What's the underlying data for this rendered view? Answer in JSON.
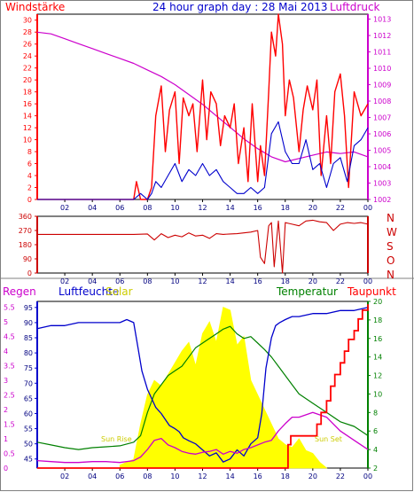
{
  "title": "24 hour graph day : 28 Mai 2013",
  "colors": {
    "wind": "#ff0000",
    "windBlue": "#0000cc",
    "pressure": "#cc00cc",
    "direction": "#cc0000",
    "humidity": "#0000cc",
    "solar": "#ffff00",
    "temperature": "#008000",
    "dewpoint": "#ff0000",
    "rain": "#cc00cc",
    "axisDark": "#000080",
    "frame": "#808080"
  },
  "chart_data": [
    {
      "type": "line",
      "id": "wind",
      "label_left": "Windstärke",
      "label_right": "Luftdruck",
      "x_ticks": [
        "02",
        "04",
        "06",
        "08",
        "10",
        "12",
        "14",
        "16",
        "18",
        "20",
        "22",
        "00"
      ],
      "y_left_ticks": [
        "0",
        "2",
        "4",
        "6",
        "8",
        "10",
        "12",
        "14",
        "16",
        "18",
        "20",
        "22",
        "24",
        "26",
        "28",
        "30"
      ],
      "y_right_ticks": [
        "1002",
        "1003",
        "1004",
        "1005",
        "1006",
        "1007",
        "1008",
        "1009",
        "1010",
        "1011",
        "1012",
        "1013"
      ],
      "ylim_left": [
        0,
        31
      ],
      "ylim_right": [
        1002,
        1013.3
      ],
      "series": [
        {
          "role": "wind-gust",
          "x": [
            0,
            7,
            7.2,
            7.5,
            8,
            8.3,
            8.6,
            9,
            9.3,
            9.6,
            10,
            10.3,
            10.6,
            11,
            11.3,
            11.6,
            12,
            12.3,
            12.6,
            13,
            13.3,
            13.6,
            14,
            14.3,
            14.6,
            15,
            15.3,
            15.6,
            16,
            16.2,
            16.5,
            16.8,
            17,
            17.3,
            17.5,
            17.8,
            18,
            18.3,
            18.6,
            19,
            19.3,
            19.6,
            20,
            20.3,
            20.6,
            21,
            21.3,
            21.6,
            22,
            22.3,
            22.6,
            23,
            23.5,
            24
          ],
          "y": [
            0,
            0,
            3,
            0,
            0,
            2,
            14,
            19,
            8,
            15,
            18,
            6,
            17,
            14,
            16,
            8,
            20,
            10,
            18,
            16,
            9,
            14,
            12,
            16,
            6,
            12,
            3,
            16,
            3,
            9,
            4,
            18,
            28,
            24,
            31,
            26,
            14,
            20,
            17,
            8,
            15,
            19,
            15,
            20,
            4,
            14,
            6,
            18,
            21,
            14,
            2,
            18,
            14,
            16
          ]
        },
        {
          "role": "wind-average",
          "x": [
            0,
            7,
            7.5,
            8,
            8.3,
            8.6,
            9,
            9.5,
            10,
            10.5,
            11,
            11.5,
            12,
            12.5,
            13,
            13.5,
            14,
            14.5,
            15,
            15.5,
            16,
            16.5,
            17,
            17.5,
            18,
            18.5,
            19,
            19.5,
            20,
            20.5,
            21,
            21.5,
            22,
            22.5,
            23,
            23.5,
            24
          ],
          "y": [
            0,
            0,
            1,
            0,
            1,
            3,
            2,
            4,
            6,
            3,
            5,
            4,
            6,
            4,
            5,
            3,
            2,
            1,
            1,
            2,
            1,
            2,
            11,
            13,
            8,
            6,
            6,
            10,
            5,
            6,
            2,
            6,
            7,
            3,
            9,
            10,
            12
          ]
        },
        {
          "role": "pressure",
          "x": [
            0,
            1,
            2,
            3,
            4,
            5,
            6,
            7,
            8,
            9,
            10,
            11,
            12,
            13,
            14,
            15,
            16,
            17,
            18,
            19,
            20,
            21,
            22,
            23,
            24
          ],
          "y": [
            1012.2,
            1012.1,
            1011.8,
            1011.5,
            1011.2,
            1010.9,
            1010.6,
            1010.3,
            1009.9,
            1009.5,
            1009.0,
            1008.4,
            1007.8,
            1007.1,
            1006.4,
            1005.7,
            1005.1,
            1004.6,
            1004.3,
            1004.5,
            1004.7,
            1004.9,
            1004.8,
            1004.9,
            1004.6
          ]
        }
      ]
    },
    {
      "type": "line",
      "id": "direction",
      "x_ticks": [
        "02",
        "04",
        "06",
        "08",
        "10",
        "12",
        "14",
        "16",
        "18",
        "20",
        "22",
        "00"
      ],
      "y_left_ticks": [
        "0",
        "90",
        "180",
        "270",
        "360"
      ],
      "y_right_ticks": [
        "N",
        "W",
        "S",
        "O",
        "N"
      ],
      "ylim": [
        0,
        360
      ],
      "series": [
        {
          "role": "wind-direction",
          "x": [
            0,
            7,
            8,
            8.5,
            9,
            9.5,
            10,
            10.5,
            11,
            11.5,
            12,
            12.5,
            13,
            13.5,
            14,
            14.5,
            15,
            15.5,
            16,
            16.2,
            16.5,
            16.8,
            17,
            17.2,
            17.5,
            17.8,
            18,
            18.5,
            19,
            19.5,
            20,
            20.5,
            21,
            21.5,
            22,
            22.5,
            23,
            23.5,
            24
          ],
          "y": [
            245,
            245,
            248,
            210,
            250,
            225,
            240,
            230,
            255,
            235,
            240,
            220,
            250,
            245,
            248,
            250,
            255,
            260,
            270,
            100,
            60,
            300,
            320,
            40,
            330,
            0,
            320,
            310,
            300,
            330,
            335,
            325,
            320,
            270,
            310,
            320,
            315,
            320,
            310
          ]
        }
      ]
    },
    {
      "type": "line",
      "id": "humidity",
      "label_rain": "Regen",
      "label_humidity": "Luftfeuchte",
      "label_solar": "Solar",
      "label_temperature": "Temperatur",
      "label_dewpoint": "Taupunkt",
      "sunrise": "Sun Rise",
      "sunset": "Sun Set",
      "x_ticks": [
        "02",
        "04",
        "06",
        "08",
        "10",
        "12",
        "14",
        "16",
        "18",
        "20",
        "22",
        "00"
      ],
      "y_rain_ticks": [
        "0",
        "0.5",
        "1",
        "1.5",
        "2",
        "2.5",
        "3",
        "3.5",
        "4",
        "4.5",
        "5",
        "5.5"
      ],
      "y_humidity_ticks": [
        "45",
        "50",
        "55",
        "60",
        "65",
        "70",
        "75",
        "80",
        "85",
        "90",
        "95"
      ],
      "y_temp_ticks": [
        "2",
        "4",
        "6",
        "8",
        "10",
        "12",
        "14",
        "16",
        "18",
        "20"
      ],
      "ylim_humidity": [
        42,
        97
      ],
      "ylim_temp": [
        2,
        20
      ],
      "ylim_rain": [
        0,
        5.7
      ],
      "series": [
        {
          "role": "humidity",
          "x": [
            0,
            1,
            2,
            3,
            4,
            5,
            6,
            6.5,
            7,
            7.3,
            7.6,
            8,
            8.3,
            8.6,
            9,
            9.3,
            9.6,
            10,
            10.3,
            10.6,
            11,
            11.5,
            12,
            12.5,
            13,
            13.5,
            14,
            14.5,
            15,
            15.5,
            16,
            16.3,
            16.6,
            17,
            17.3,
            17.6,
            18,
            18.5,
            19,
            20,
            21,
            22,
            23,
            24
          ],
          "y": [
            88,
            89,
            89,
            90,
            90,
            90,
            90,
            91,
            90,
            82,
            74,
            68,
            65,
            62,
            60,
            58,
            56,
            55,
            54,
            52,
            51,
            50,
            48,
            46,
            47,
            44,
            45,
            48,
            46,
            50,
            52,
            60,
            75,
            85,
            89,
            90,
            91,
            92,
            92,
            93,
            93,
            94,
            94,
            95
          ]
        },
        {
          "role": "solar-radiation",
          "x": [
            6,
            7,
            7.5,
            8,
            8.5,
            9,
            9.5,
            10,
            10.5,
            11,
            11.5,
            12,
            12.5,
            13,
            13.5,
            14,
            14.5,
            15,
            15.5,
            16,
            16.5,
            17,
            17.5,
            18,
            18.5,
            19,
            19.5,
            20,
            20.5,
            21
          ],
          "y": [
            0.1,
            0.3,
            1.5,
            2.5,
            3,
            2.8,
            3.2,
            3.6,
            4,
            4.3,
            3.5,
            4.6,
            5,
            4.3,
            5.5,
            5.4,
            4.2,
            4.5,
            3,
            2.5,
            2,
            1.5,
            1,
            0.8,
            0.7,
            1,
            0.6,
            0.5,
            0.2,
            0
          ]
        },
        {
          "role": "temperature",
          "x": [
            0,
            1,
            2,
            3,
            4,
            5,
            6,
            7,
            7.5,
            8,
            8.5,
            9,
            9.5,
            10,
            10.5,
            11,
            11.5,
            12,
            12.5,
            13,
            13.5,
            14,
            14.5,
            15,
            15.5,
            16,
            16.5,
            17,
            17.5,
            18,
            18.5,
            19,
            20,
            21,
            22,
            23,
            24
          ],
          "y": [
            4.8,
            4.5,
            4.2,
            4.0,
            4.2,
            4.3,
            4.4,
            4.8,
            5.5,
            8,
            10,
            11,
            12,
            12.5,
            13,
            14,
            15,
            15.5,
            16,
            16.5,
            17,
            17.3,
            16.5,
            16,
            16.2,
            15.5,
            14.8,
            14,
            13,
            12,
            11,
            10,
            9,
            8,
            7,
            6.5,
            5.5
          ]
        },
        {
          "role": "dewpoint",
          "x": [
            0,
            1,
            2,
            3,
            4,
            5,
            6,
            7,
            7.5,
            8,
            8.5,
            9,
            9.5,
            10,
            10.5,
            11,
            11.5,
            12,
            12.5,
            13,
            13.5,
            14,
            14.5,
            15,
            15.5,
            16,
            16.5,
            17,
            17.5,
            18,
            18.5,
            19,
            20,
            21,
            22,
            23,
            24
          ],
          "y": [
            2.8,
            2.7,
            2.6,
            2.6,
            2.7,
            2.7,
            2.6,
            2.8,
            3.2,
            4,
            5,
            5.2,
            4.5,
            4.2,
            3.8,
            3.6,
            3.5,
            3.7,
            3.8,
            4,
            3.5,
            3.8,
            3.6,
            4,
            4.2,
            4.5,
            4.8,
            5,
            6,
            6.8,
            7.5,
            7.5,
            8,
            7.5,
            6,
            5,
            4
          ]
        },
        {
          "role": "rain-total",
          "x": [
            0,
            18,
            18.2,
            18.4,
            20,
            20.3,
            20.6,
            21,
            21.3,
            21.6,
            22,
            22.3,
            22.6,
            23,
            23.3,
            23.6,
            24
          ],
          "y": [
            0,
            0,
            0.8,
            1.1,
            1.1,
            1.5,
            1.9,
            2.3,
            2.8,
            3.2,
            3.6,
            4,
            4.4,
            4.7,
            5.1,
            5.4,
            5.6
          ]
        }
      ]
    }
  ]
}
